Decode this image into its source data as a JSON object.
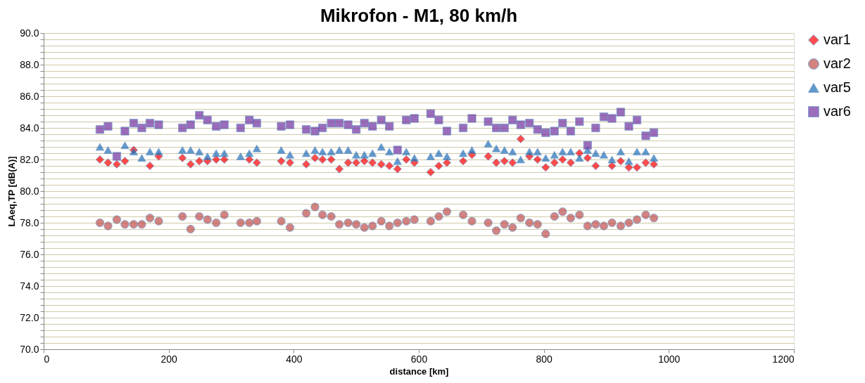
{
  "chart_data": {
    "type": "scatter",
    "title": "Mikrofon - M1, 80 km/h",
    "xlabel": "distance  [km]",
    "ylabel": "LAeq,TP  [dB(A)]",
    "x": [
      90,
      103,
      117,
      130,
      144,
      157,
      170,
      184,
      222,
      235,
      249,
      262,
      276,
      289,
      315,
      329,
      341,
      380,
      394,
      420,
      434,
      446,
      460,
      473,
      487,
      500,
      513,
      526,
      540,
      553,
      566,
      580,
      593,
      619,
      632,
      645,
      671,
      685,
      711,
      724,
      737,
      750,
      763,
      777,
      790,
      803,
      817,
      830,
      843,
      857,
      870,
      883,
      896,
      909,
      923,
      936,
      949,
      963,
      976
    ],
    "series": [
      {
        "name": "var1",
        "color": "#ff0000",
        "marker": "diamond",
        "values": [
          82.0,
          81.8,
          81.7,
          81.9,
          82.6,
          null,
          81.6,
          82.2,
          82.1,
          81.7,
          81.9,
          81.9,
          82.0,
          82.0,
          null,
          82.0,
          81.8,
          81.9,
          81.8,
          81.7,
          82.1,
          82.0,
          82.0,
          81.4,
          81.8,
          81.8,
          81.9,
          81.8,
          81.7,
          81.6,
          81.4,
          82.0,
          81.8,
          81.2,
          81.6,
          81.8,
          81.9,
          82.3,
          82.2,
          81.8,
          81.9,
          81.8,
          83.3,
          82.2,
          82.0,
          81.5,
          81.8,
          82.0,
          81.8,
          82.4,
          82.1,
          81.6,
          null,
          81.6,
          81.9,
          81.5,
          81.5,
          81.8,
          81.7
        ]
      },
      {
        "name": "var2",
        "color": "#c0504d",
        "marker": "circle",
        "values": [
          78.0,
          77.8,
          78.2,
          77.9,
          77.9,
          77.9,
          78.3,
          78.1,
          78.4,
          77.6,
          78.4,
          78.2,
          78.0,
          78.5,
          78.0,
          78.0,
          78.1,
          78.1,
          77.7,
          78.6,
          79.0,
          78.5,
          78.4,
          77.9,
          78.0,
          77.9,
          77.7,
          77.8,
          78.1,
          77.8,
          78.0,
          78.1,
          78.2,
          78.1,
          78.4,
          78.7,
          78.5,
          78.1,
          78.0,
          77.5,
          77.9,
          77.7,
          78.3,
          78.0,
          77.9,
          77.3,
          78.4,
          78.7,
          78.3,
          78.5,
          77.8,
          77.9,
          77.8,
          78.0,
          77.8,
          78.0,
          78.2,
          78.5,
          78.3
        ]
      },
      {
        "name": "var5",
        "color": "#1f6fb8",
        "marker": "triangle",
        "values": [
          82.8,
          82.6,
          null,
          82.9,
          82.5,
          82.1,
          82.5,
          82.5,
          82.6,
          82.6,
          82.5,
          82.2,
          82.4,
          82.4,
          82.2,
          82.4,
          82.7,
          82.6,
          82.3,
          82.4,
          82.6,
          82.5,
          82.5,
          82.6,
          82.6,
          82.3,
          82.3,
          82.4,
          82.8,
          82.5,
          81.9,
          82.5,
          82.1,
          82.2,
          82.4,
          82.2,
          82.4,
          82.6,
          83.0,
          82.7,
          82.6,
          82.5,
          82.0,
          82.5,
          82.5,
          82.1,
          82.3,
          82.5,
          82.5,
          82.1,
          82.6,
          82.4,
          82.3,
          82.0,
          82.5,
          81.9,
          82.5,
          82.5,
          82.1
        ]
      },
      {
        "name": "var6",
        "color": "#7030a0",
        "marker": "square",
        "values": [
          83.9,
          84.1,
          82.2,
          83.8,
          84.3,
          84.0,
          84.3,
          84.2,
          84.0,
          84.2,
          84.8,
          84.5,
          84.1,
          84.2,
          84.0,
          84.5,
          84.3,
          84.1,
          84.2,
          83.9,
          83.8,
          84.0,
          84.3,
          84.3,
          84.2,
          83.9,
          84.3,
          84.1,
          84.5,
          84.1,
          82.6,
          84.5,
          84.6,
          84.9,
          84.5,
          83.8,
          84.0,
          84.6,
          84.4,
          84.0,
          84.0,
          84.5,
          84.2,
          84.3,
          83.9,
          83.7,
          83.8,
          84.3,
          83.8,
          84.4,
          82.9,
          84.0,
          84.7,
          84.6,
          85.0,
          84.1,
          84.5,
          83.5,
          83.7
        ]
      }
    ],
    "xlim": [
      0,
      1200
    ],
    "xticks": [
      0,
      200,
      400,
      600,
      800,
      1000,
      1200
    ],
    "ylim": [
      70,
      90
    ],
    "yticks": [
      {
        "value": 70,
        "label": "70.0"
      },
      {
        "value": 70.4,
        "label": null
      },
      {
        "value": 70.8,
        "label": null
      },
      {
        "value": 71.2,
        "label": null
      },
      {
        "value": 71.6,
        "label": null
      },
      {
        "value": 72,
        "label": "72.0"
      },
      {
        "value": 72.4,
        "label": null
      },
      {
        "value": 72.8,
        "label": null
      },
      {
        "value": 73.2,
        "label": null
      },
      {
        "value": 73.6,
        "label": null
      },
      {
        "value": 74,
        "label": "74.0"
      },
      {
        "value": 74.4,
        "label": null
      },
      {
        "value": 74.8,
        "label": null
      },
      {
        "value": 75.2,
        "label": null
      },
      {
        "value": 75.6,
        "label": null
      },
      {
        "value": 76,
        "label": "76.0"
      },
      {
        "value": 76.4,
        "label": null
      },
      {
        "value": 76.8,
        "label": null
      },
      {
        "value": 77.2,
        "label": null
      },
      {
        "value": 77.6,
        "label": null
      },
      {
        "value": 78,
        "label": "78.0"
      },
      {
        "value": 78.4,
        "label": null
      },
      {
        "value": 78.8,
        "label": null
      },
      {
        "value": 79.2,
        "label": null
      },
      {
        "value": 79.6,
        "label": null
      },
      {
        "value": 80,
        "label": "80.0"
      },
      {
        "value": 80.4,
        "label": null
      },
      {
        "value": 80.8,
        "label": null
      },
      {
        "value": 81.2,
        "label": null
      },
      {
        "value": 81.6,
        "label": null
      },
      {
        "value": 82,
        "label": "82.0"
      },
      {
        "value": 82.4,
        "label": null
      },
      {
        "value": 82.8,
        "label": null
      },
      {
        "value": 83.2,
        "label": null
      },
      {
        "value": 83.6,
        "label": null
      },
      {
        "value": 84,
        "label": "84.0"
      },
      {
        "value": 84.4,
        "label": null
      },
      {
        "value": 84.8,
        "label": null
      },
      {
        "value": 85.2,
        "label": null
      },
      {
        "value": 85.6,
        "label": null
      },
      {
        "value": 86,
        "label": "86.0"
      },
      {
        "value": 86.4,
        "label": null
      },
      {
        "value": 86.8,
        "label": null
      },
      {
        "value": 87.2,
        "label": null
      },
      {
        "value": 87.6,
        "label": null
      },
      {
        "value": 88,
        "label": "88.0"
      },
      {
        "value": 88.4,
        "label": null
      },
      {
        "value": 88.8,
        "label": null
      },
      {
        "value": 89.2,
        "label": null
      },
      {
        "value": 89.6,
        "label": null
      },
      {
        "value": 90,
        "label": "90.0"
      }
    ],
    "grid": "y",
    "legend": "right"
  }
}
